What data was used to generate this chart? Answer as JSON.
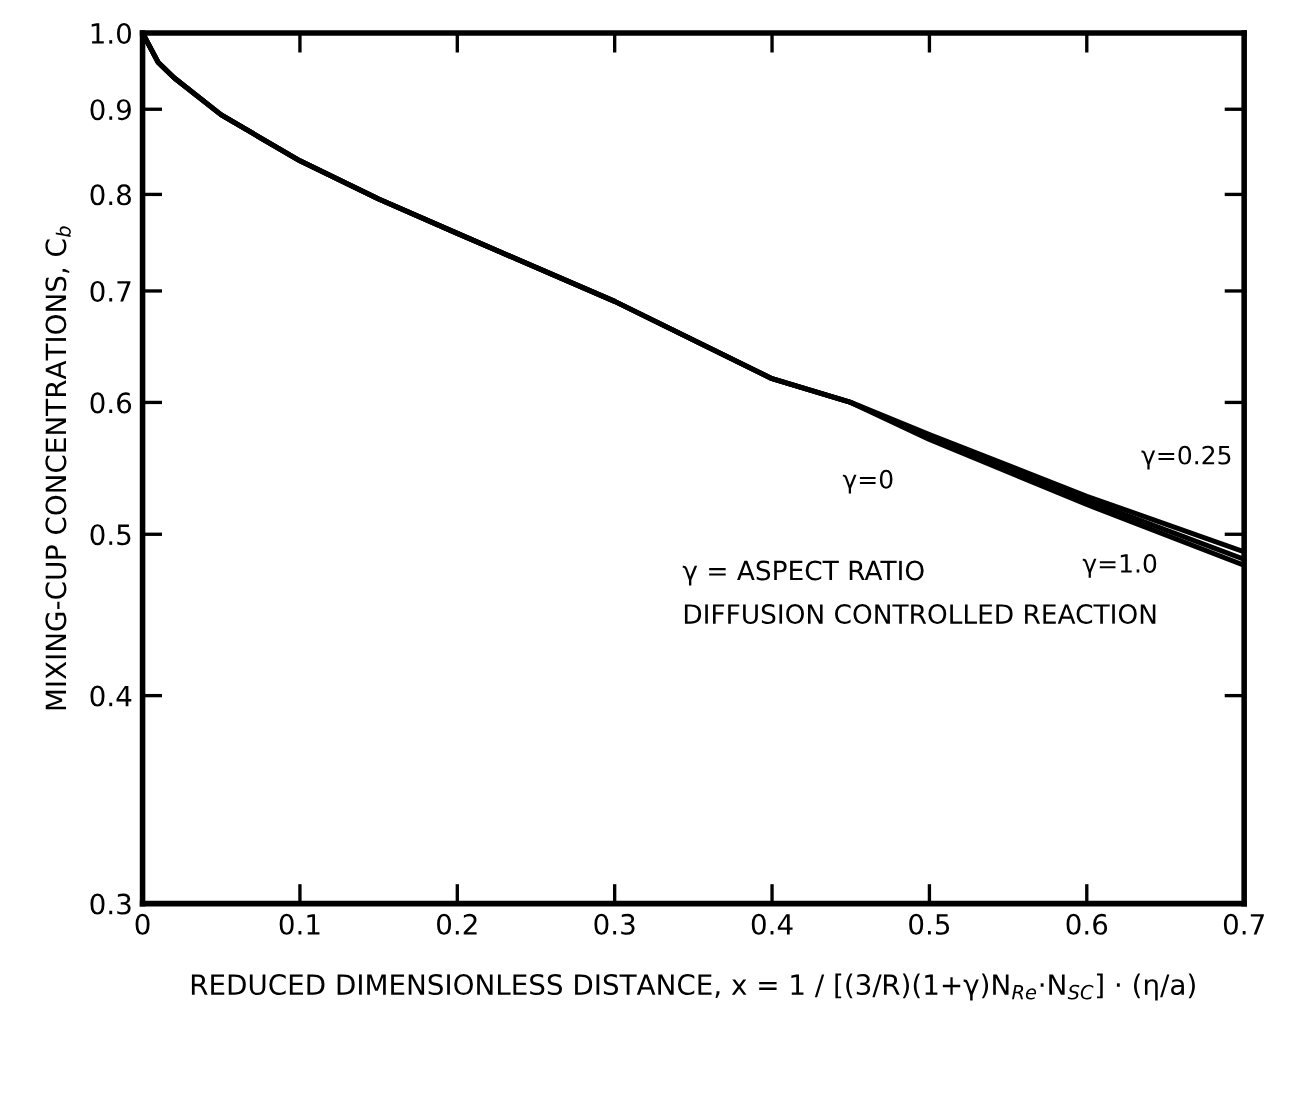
{
  "chart_data": {
    "type": "line",
    "xlabel": "REDUCED DIMENSIONLESS DISTANCE, x = 1 / [(3/R)(1+γ)N$_{Re}$·N$_{SC}$] · (η/a)",
    "ylabel": "MIXING-CUP CONCENTRATIONS, C$_{b}$",
    "log": "y",
    "xlim": [
      0,
      0.7
    ],
    "ylim": [
      0.3,
      1.0
    ],
    "xticks": [
      0,
      0.1,
      0.2,
      0.3,
      0.4,
      0.5,
      0.6,
      0.7
    ],
    "yticks": [
      0.3,
      0.4,
      0.5,
      0.6,
      0.7,
      0.8,
      0.9,
      {
        "value": 1,
        "label": "1.0"
      }
    ],
    "grid": false,
    "marker": "none",
    "line_style": "solid",
    "x": [
      0,
      0.01,
      0.02,
      0.05,
      0.1,
      0.15,
      0.2,
      0.3,
      0.4,
      0.45,
      0.5,
      0.6,
      0.7
    ],
    "series": [
      {
        "name": "γ=0",
        "color": "#000000",
        "values": [
          1.0,
          0.96,
          0.94,
          0.893,
          0.838,
          0.795,
          0.758,
          0.69,
          0.62,
          0.6,
          0.572,
          0.524,
          0.483
        ]
      },
      {
        "name": "γ=0.25",
        "color": "#000000",
        "values": [
          1.0,
          0.96,
          0.94,
          0.893,
          0.838,
          0.795,
          0.758,
          0.69,
          0.62,
          0.6,
          0.574,
          0.527,
          0.488
        ]
      },
      {
        "name": "γ=1.0",
        "color": "#000000",
        "values": [
          1.0,
          0.96,
          0.94,
          0.893,
          0.838,
          0.795,
          0.758,
          0.69,
          0.62,
          0.6,
          0.57,
          0.521,
          0.479
        ]
      }
    ],
    "annotations": [
      "γ = ASPECT RATIO",
      "DIFFUSION CONTROLLED REACTION"
    ]
  }
}
